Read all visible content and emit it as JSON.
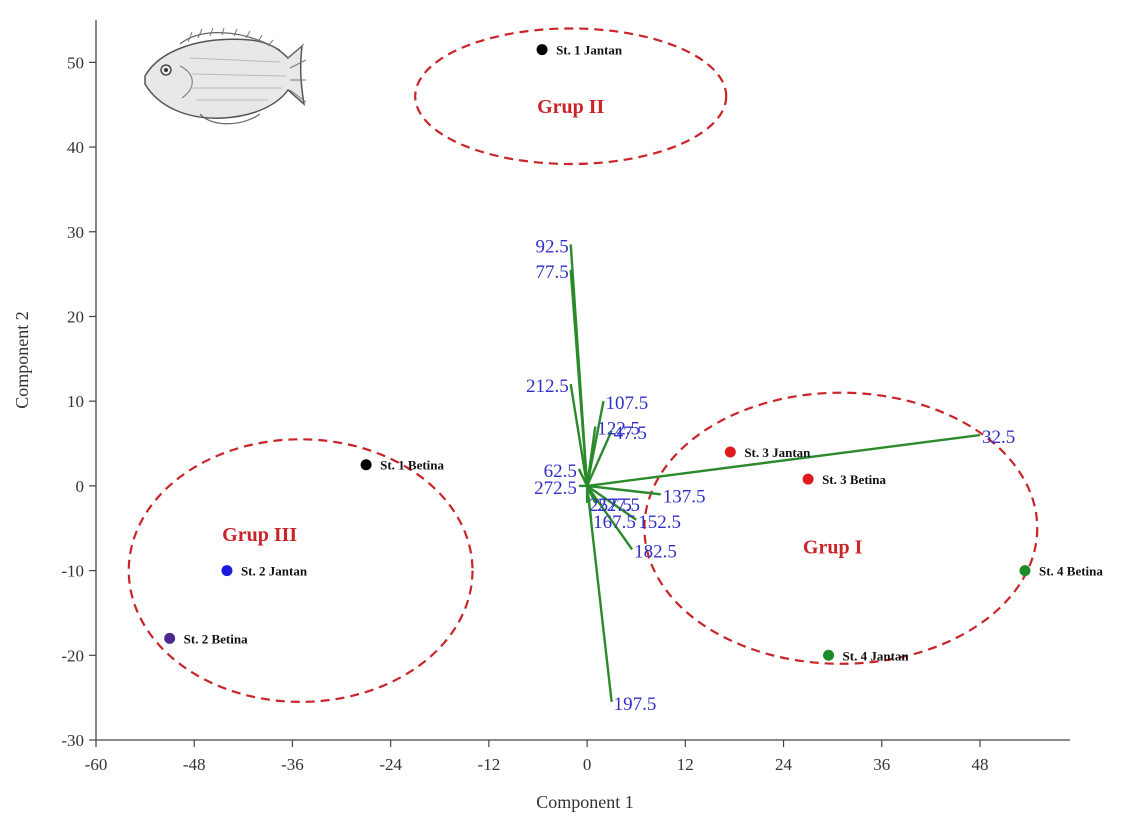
{
  "chart_data": {
    "type": "scatter",
    "subtype": "pca-biplot",
    "xlabel": "Component 1",
    "ylabel": "Component 2",
    "xlim": [
      -60,
      59
    ],
    "ylim": [
      -30,
      55
    ],
    "x_ticks": [
      -60,
      -48,
      -36,
      -24,
      -12,
      0,
      12,
      24,
      36,
      48
    ],
    "y_ticks": [
      -30,
      -20,
      -10,
      0,
      10,
      20,
      30,
      40,
      50
    ],
    "grid": false,
    "points": [
      {
        "label": "St. 1 Jantan",
        "x": -5.5,
        "y": 51.5,
        "color": "#000000"
      },
      {
        "label": "St. 1 Betina",
        "x": -27,
        "y": 2.5,
        "color": "#000000"
      },
      {
        "label": "St. 2 Jantan",
        "x": -44,
        "y": -10,
        "color": "#1a1adc"
      },
      {
        "label": "St. 2 Betina",
        "x": -51,
        "y": -18,
        "color": "#4b2a90"
      },
      {
        "label": "St. 3 Jantan",
        "x": 17.5,
        "y": 4,
        "color": "#e01b1b"
      },
      {
        "label": "St. 3 Betina",
        "x": 27,
        "y": 0.8,
        "color": "#e01b1b"
      },
      {
        "label": "St. 4 Betina",
        "x": 53.5,
        "y": -10,
        "color": "#1d8a2a"
      },
      {
        "label": "St. 4 Jantan",
        "x": 29.5,
        "y": -20,
        "color": "#1d8a2a"
      }
    ],
    "vectors": [
      {
        "label": "92.5",
        "x": -2,
        "y": 28.5
      },
      {
        "label": "77.5",
        "x": -2,
        "y": 25.5
      },
      {
        "label": "107.5",
        "x": 2,
        "y": 10
      },
      {
        "label": "122.5",
        "x": 1,
        "y": 7
      },
      {
        "label": "212.5",
        "x": -2,
        "y": 12
      },
      {
        "label": "62.5",
        "x": -1,
        "y": 2
      },
      {
        "label": "47.5",
        "x": 3,
        "y": 6.5
      },
      {
        "label": "32.5",
        "x": 48,
        "y": 6
      },
      {
        "label": "137.5",
        "x": 9,
        "y": -1
      },
      {
        "label": "272.5",
        "x": -1,
        "y": 0
      },
      {
        "label": "227.5",
        "x": 1,
        "y": -2
      },
      {
        "label": "257.5",
        "x": 0,
        "y": -2
      },
      {
        "label": "167.5",
        "x": 0.5,
        "y": -4
      },
      {
        "label": "152.5",
        "x": 6,
        "y": -4
      },
      {
        "label": "182.5",
        "x": 5.5,
        "y": -7.5
      },
      {
        "label": "197.5",
        "x": 3,
        "y": -25.5
      }
    ],
    "vector_color": "#2b8a2b",
    "vector_label_color": "#2f2fc8",
    "groups": [
      {
        "label": "Grup I",
        "cx": 31,
        "cy": -5,
        "rx": 24,
        "ry": 16,
        "label_x": 30,
        "label_y": -8
      },
      {
        "label": "Grup II",
        "cx": -2,
        "cy": 46,
        "rx": 19,
        "ry": 8,
        "label_x": -2,
        "label_y": 44
      },
      {
        "label": "Grup III",
        "cx": -35,
        "cy": -10,
        "rx": 21,
        "ry": 15.5,
        "label_x": -40,
        "label_y": -6.5
      }
    ],
    "group_color": "#c8242a",
    "decoration": "fish-illustration"
  }
}
